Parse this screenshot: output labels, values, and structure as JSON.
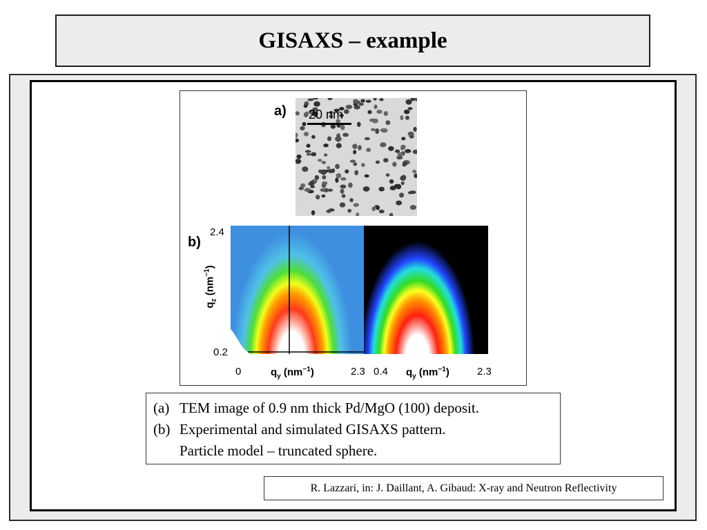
{
  "title": "GISAXS – example",
  "figure": {
    "panel_a_label": "a)",
    "panel_b_label": "b)",
    "scale_bar": "20 nm",
    "y_tick_top": "2.4",
    "y_tick_bottom": "0.2",
    "y_axis_label": "q",
    "y_axis_sub": "z",
    "y_axis_unit": " (nm",
    "y_axis_exp": "−1",
    "y_axis_close": ")",
    "x_ticks_left": [
      "0",
      "2.3"
    ],
    "x_ticks_right": [
      "0.4",
      "2.3"
    ],
    "x_axis_label": "q",
    "x_axis_sub": "y",
    "x_axis_unit": " (nm",
    "x_axis_exp": "−1",
    "x_axis_close": ")"
  },
  "caption": {
    "line1_tag": "(a)",
    "line1_text": "TEM image of 0.9 nm thick Pd/MgO (100) deposit.",
    "line2_tag": "(b)",
    "line2_text": "Experimental and simulated GISAXS pattern.",
    "line3_text": "Particle model – truncated sphere."
  },
  "reference": "R. Lazzari, in: J. Daillant, A. Gibaud: X-ray and Neutron Reflectivity"
}
